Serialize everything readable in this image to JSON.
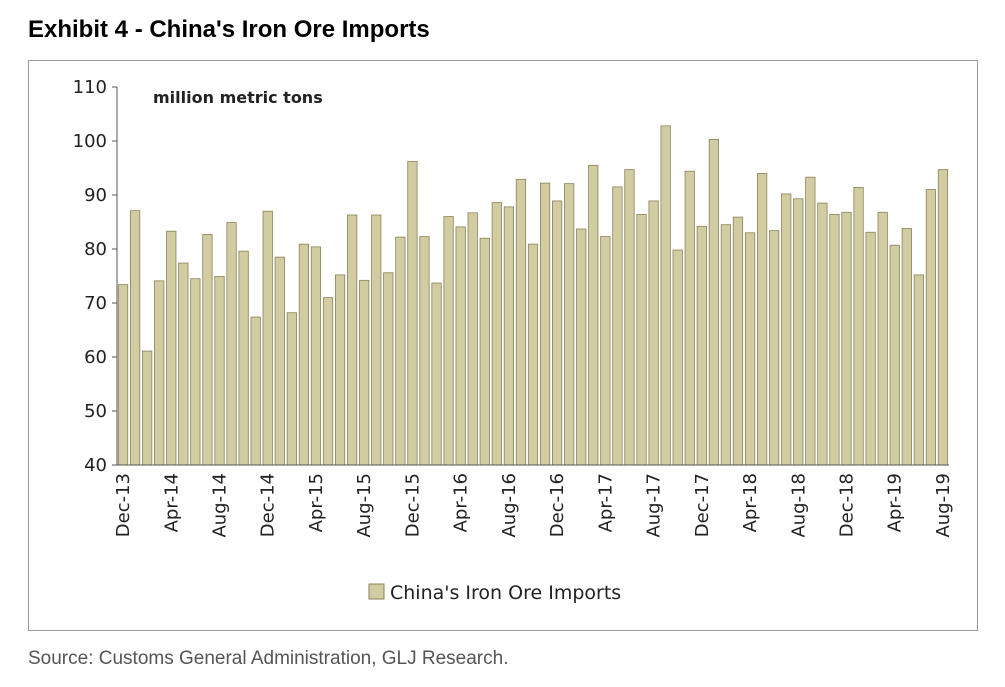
{
  "exhibit_title": "Exhibit 4 - China's Iron Ore Imports",
  "source_note": "Source: Customs General Administration, GLJ Research.",
  "colors": {
    "bar_fill": "#d2cca2",
    "bar_stroke": "#8a8258",
    "axis": "#555555"
  },
  "chart_data": {
    "type": "bar",
    "title": "China's Iron Ore Imports",
    "unit_label": "million metric tons",
    "ylim": [
      40,
      110
    ],
    "yticks": [
      40,
      50,
      60,
      70,
      80,
      90,
      100,
      110
    ],
    "tick_labels": [
      "Dec-13",
      "Apr-14",
      "Aug-14",
      "Dec-14",
      "Apr-15",
      "Aug-15",
      "Dec-15",
      "Apr-16",
      "Aug-16",
      "Dec-16",
      "Apr-17",
      "Aug-17",
      "Dec-17",
      "Apr-18",
      "Aug-18",
      "Dec-18",
      "Apr-19",
      "Aug-19"
    ],
    "categories": [
      "Dec-13",
      "Jan-14",
      "Feb-14",
      "Mar-14",
      "Apr-14",
      "May-14",
      "Jun-14",
      "Jul-14",
      "Aug-14",
      "Sep-14",
      "Oct-14",
      "Nov-14",
      "Dec-14",
      "Jan-15",
      "Feb-15",
      "Mar-15",
      "Apr-15",
      "May-15",
      "Jun-15",
      "Jul-15",
      "Aug-15",
      "Sep-15",
      "Oct-15",
      "Nov-15",
      "Dec-15",
      "Jan-16",
      "Feb-16",
      "Mar-16",
      "Apr-16",
      "May-16",
      "Jun-16",
      "Jul-16",
      "Aug-16",
      "Sep-16",
      "Oct-16",
      "Nov-16",
      "Dec-16",
      "Jan-17",
      "Feb-17",
      "Mar-17",
      "Apr-17",
      "May-17",
      "Jun-17",
      "Jul-17",
      "Aug-17",
      "Sep-17",
      "Oct-17",
      "Nov-17",
      "Dec-17",
      "Jan-18",
      "Feb-18",
      "Mar-18",
      "Apr-18",
      "May-18",
      "Jun-18",
      "Jul-18",
      "Aug-18",
      "Sep-18",
      "Oct-18",
      "Nov-18",
      "Dec-18",
      "Jan-19",
      "Feb-19",
      "Mar-19",
      "Apr-19",
      "May-19",
      "Jun-19",
      "Jul-19",
      "Aug-19"
    ],
    "series": [
      {
        "name": "China's Iron Ore Imports",
        "values": [
          73.4,
          87.1,
          61.1,
          74.1,
          83.3,
          77.4,
          74.5,
          82.7,
          74.9,
          84.9,
          79.6,
          67.4,
          87.0,
          78.5,
          68.2,
          80.9,
          80.4,
          71.0,
          75.2,
          86.3,
          74.2,
          86.3,
          75.6,
          82.2,
          96.2,
          82.3,
          73.7,
          86.0,
          84.1,
          86.7,
          82.0,
          88.6,
          87.8,
          92.9,
          80.9,
          92.2,
          88.9,
          92.1,
          83.7,
          95.5,
          82.3,
          91.5,
          94.7,
          86.4,
          88.9,
          102.8,
          79.8,
          94.4,
          84.2,
          100.3,
          84.5,
          85.9,
          83.0,
          94.0,
          83.4,
          90.2,
          89.3,
          93.3,
          88.5,
          86.4,
          86.8,
          91.4,
          83.1,
          86.8,
          80.7,
          83.8,
          75.2,
          91.0,
          94.7
        ]
      }
    ],
    "legend": {
      "label": "China's Iron Ore Imports",
      "position": "bottom-center"
    }
  }
}
